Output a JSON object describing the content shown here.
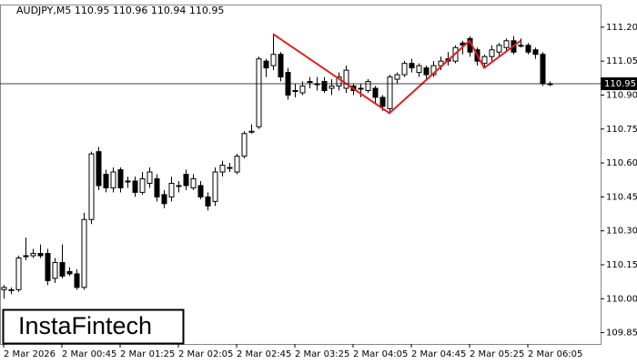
{
  "chart_data": {
    "type": "candlestick",
    "title": "AUDJPY,M5  110.95 110.96 110.94 110.95",
    "logo": "InstaFintech",
    "categories": [
      "2 Mar 2026",
      null,
      null,
      null,
      null,
      null,
      null,
      null,
      "2 Mar 00:45",
      null,
      null,
      null,
      null,
      null,
      null,
      null,
      "2 Mar 01:25",
      null,
      null,
      null,
      null,
      null,
      null,
      null,
      "2 Mar 02:05",
      null,
      null,
      null,
      null,
      null,
      null,
      null,
      "2 Mar 02:45",
      null,
      null,
      null,
      null,
      null,
      null,
      null,
      "2 Mar 03:25",
      null,
      null,
      null,
      null,
      null,
      null,
      null,
      "2 Mar 04:05",
      null,
      null,
      null,
      null,
      null,
      null,
      null,
      "2 Mar 04:45",
      null,
      null,
      null,
      null,
      null,
      null,
      null,
      "2 Mar 05:25",
      null,
      null,
      null,
      null,
      null,
      null,
      null,
      "2 Mar 06:05",
      null,
      null,
      null
    ],
    "open": [
      110.04,
      110.04,
      110.04,
      110.19,
      110.19,
      110.2,
      110.2,
      110.09,
      110.16,
      110.12,
      110.11,
      110.05,
      110.35,
      110.65,
      110.55,
      110.49,
      110.57,
      110.52,
      110.52,
      110.47,
      110.51,
      110.53,
      110.46,
      110.45,
      110.5,
      110.55,
      110.49,
      110.5,
      110.45,
      110.43,
      110.56,
      110.58,
      110.56,
      110.63,
      110.74,
      110.76,
      111.05,
      111.03,
      111.08,
      111.0,
      110.92,
      110.91,
      110.96,
      110.95,
      110.96,
      110.93,
      110.94,
      110.93,
      110.94,
      110.93,
      110.92,
      110.93,
      110.89,
      110.84,
      110.97,
      110.99,
      111.04,
      111.0,
      111.02,
      110.99,
      111.03,
      111.06,
      111.05,
      111.13,
      111.15,
      111.1,
      111.04,
      111.07,
      111.09,
      111.11,
      111.14,
      111.12,
      111.12,
      111.1,
      111.08,
      110.95
    ],
    "high": [
      110.06,
      110.05,
      110.19,
      110.27,
      110.22,
      110.24,
      110.22,
      110.18,
      110.24,
      110.14,
      110.13,
      110.38,
      110.65,
      110.67,
      110.57,
      110.58,
      110.58,
      110.54,
      110.54,
      110.56,
      110.58,
      110.55,
      110.48,
      110.54,
      110.52,
      110.57,
      110.55,
      110.52,
      110.47,
      110.58,
      110.61,
      110.6,
      110.64,
      110.74,
      110.77,
      111.07,
      111.06,
      111.17,
      111.09,
      111.02,
      110.95,
      110.96,
      110.98,
      110.98,
      110.98,
      110.97,
      111.0,
      111.03,
      110.95,
      110.95,
      110.97,
      110.94,
      110.9,
      110.99,
      111.0,
      111.05,
      111.06,
      111.04,
      111.03,
      111.05,
      111.07,
      111.09,
      111.12,
      111.14,
      111.16,
      111.11,
      111.08,
      111.12,
      111.13,
      111.15,
      111.16,
      111.15,
      111.13,
      111.11,
      111.09,
      110.96
    ],
    "low": [
      110.0,
      110.02,
      110.03,
      110.17,
      110.18,
      110.18,
      110.06,
      110.07,
      110.09,
      110.1,
      110.04,
      110.04,
      110.33,
      110.48,
      110.47,
      110.47,
      110.47,
      110.49,
      110.45,
      110.46,
      110.49,
      110.43,
      110.4,
      110.43,
      110.47,
      110.48,
      110.48,
      110.44,
      110.39,
      110.41,
      110.54,
      110.56,
      110.55,
      110.62,
      110.73,
      110.75,
      110.98,
      111.01,
      110.96,
      110.88,
      110.89,
      110.9,
      110.93,
      110.92,
      110.91,
      110.9,
      110.92,
      110.91,
      110.9,
      110.89,
      110.91,
      110.86,
      110.83,
      110.82,
      110.95,
      110.98,
      111.0,
      110.98,
      110.97,
      110.98,
      111.01,
      111.03,
      111.04,
      111.08,
      111.07,
      111.03,
      111.02,
      111.05,
      111.07,
      111.09,
      111.08,
      111.11,
      111.08,
      111.06,
      110.94,
      110.94
    ],
    "close": [
      110.05,
      110.04,
      110.18,
      110.19,
      110.2,
      110.19,
      110.08,
      110.16,
      110.1,
      110.11,
      110.05,
      110.35,
      110.64,
      110.5,
      110.49,
      110.56,
      110.49,
      110.52,
      110.47,
      110.53,
      110.56,
      110.45,
      110.42,
      110.51,
      110.5,
      110.5,
      110.53,
      110.45,
      110.41,
      110.56,
      110.59,
      110.58,
      110.63,
      110.73,
      110.74,
      111.06,
      111.02,
      111.08,
      110.98,
      110.9,
      110.92,
      110.94,
      110.96,
      110.95,
      110.92,
      110.94,
      110.98,
      111.01,
      110.92,
      110.93,
      110.96,
      110.89,
      110.85,
      110.98,
      110.99,
      111.04,
      111.02,
      111.03,
      110.99,
      111.03,
      111.05,
      111.05,
      111.11,
      111.12,
      111.09,
      111.05,
      111.07,
      111.1,
      111.12,
      111.14,
      111.09,
      111.12,
      111.09,
      111.08,
      110.95,
      110.95
    ],
    "current_price": 110.95,
    "pattern": {
      "color": "#e41f1f",
      "x": [
        37,
        53,
        64,
        66,
        71
      ],
      "values": [
        111.17,
        110.82,
        111.14,
        111.02,
        111.14
      ]
    },
    "ylim": [
      109.8,
      111.3
    ],
    "yticks": [
      109.85,
      {
        "value": 110,
        "label": "110.00"
      },
      110.15,
      {
        "value": 110.3,
        "label": "110.30"
      },
      110.45,
      {
        "value": 110.6,
        "label": "110.60"
      },
      110.75,
      {
        "value": 110.9,
        "label": "110.90"
      },
      111.05,
      {
        "value": 111.2,
        "label": "111.20"
      }
    ]
  }
}
